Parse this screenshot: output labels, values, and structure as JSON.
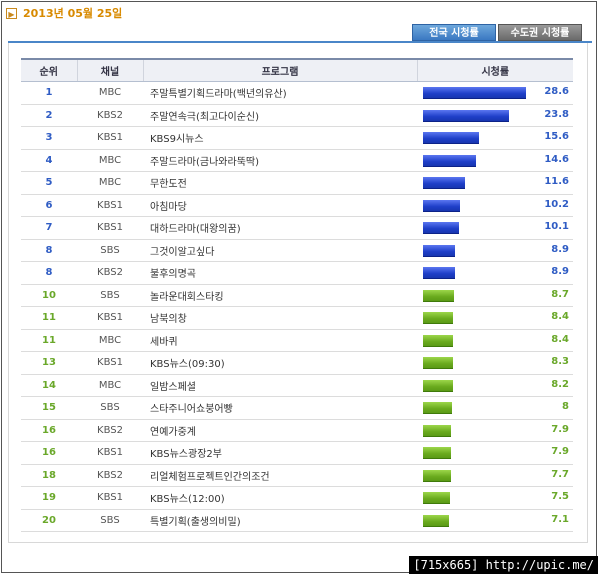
{
  "header": {
    "date": "2013년 05월 25일",
    "date_icon": "arrow-right-icon"
  },
  "tabs": [
    {
      "label": "전국 시청률",
      "active": true
    },
    {
      "label": "수도권 시청률",
      "active": false
    }
  ],
  "table": {
    "headers": [
      "순위",
      "채널",
      "프로그램",
      "시청률"
    ],
    "max_rating": 28.6,
    "rows": [
      {
        "rank": "1",
        "channel": "MBC",
        "program": "주말특별기획드라마(백년의유산)",
        "rating": "28.6",
        "value": 28.6,
        "tier": "blue"
      },
      {
        "rank": "2",
        "channel": "KBS2",
        "program": "주말연속극(최고다이순신)",
        "rating": "23.8",
        "value": 23.8,
        "tier": "blue"
      },
      {
        "rank": "3",
        "channel": "KBS1",
        "program": "KBS9시뉴스",
        "rating": "15.6",
        "value": 15.6,
        "tier": "blue"
      },
      {
        "rank": "4",
        "channel": "MBC",
        "program": "주말드라마(금나와라뚝딱)",
        "rating": "14.6",
        "value": 14.6,
        "tier": "blue"
      },
      {
        "rank": "5",
        "channel": "MBC",
        "program": "무한도전",
        "rating": "11.6",
        "value": 11.6,
        "tier": "blue"
      },
      {
        "rank": "6",
        "channel": "KBS1",
        "program": "아침마당",
        "rating": "10.2",
        "value": 10.2,
        "tier": "blue"
      },
      {
        "rank": "7",
        "channel": "KBS1",
        "program": "대하드라마(대왕의꿈)",
        "rating": "10.1",
        "value": 10.1,
        "tier": "blue"
      },
      {
        "rank": "8",
        "channel": "SBS",
        "program": "그것이알고싶다",
        "rating": "8.9",
        "value": 8.9,
        "tier": "blue"
      },
      {
        "rank": "8",
        "channel": "KBS2",
        "program": "불후의명곡",
        "rating": "8.9",
        "value": 8.9,
        "tier": "blue"
      },
      {
        "rank": "10",
        "channel": "SBS",
        "program": "놀라운대회스타킹",
        "rating": "8.7",
        "value": 8.7,
        "tier": "green"
      },
      {
        "rank": "11",
        "channel": "KBS1",
        "program": "남북의창",
        "rating": "8.4",
        "value": 8.4,
        "tier": "green"
      },
      {
        "rank": "11",
        "channel": "MBC",
        "program": "세바퀴",
        "rating": "8.4",
        "value": 8.4,
        "tier": "green"
      },
      {
        "rank": "13",
        "channel": "KBS1",
        "program": "KBS뉴스(09:30)",
        "rating": "8.3",
        "value": 8.3,
        "tier": "green"
      },
      {
        "rank": "14",
        "channel": "MBC",
        "program": "일밤스페셜",
        "rating": "8.2",
        "value": 8.2,
        "tier": "green"
      },
      {
        "rank": "15",
        "channel": "SBS",
        "program": "스타주니어쇼붕어빵",
        "rating": "8",
        "value": 8.0,
        "tier": "green"
      },
      {
        "rank": "16",
        "channel": "KBS2",
        "program": "연예가중계",
        "rating": "7.9",
        "value": 7.9,
        "tier": "green"
      },
      {
        "rank": "16",
        "channel": "KBS1",
        "program": "KBS뉴스광장2부",
        "rating": "7.9",
        "value": 7.9,
        "tier": "green"
      },
      {
        "rank": "18",
        "channel": "KBS2",
        "program": "리얼체험프로젝트인간의조건",
        "rating": "7.7",
        "value": 7.7,
        "tier": "green"
      },
      {
        "rank": "19",
        "channel": "KBS1",
        "program": "KBS뉴스(12:00)",
        "rating": "7.5",
        "value": 7.5,
        "tier": "green"
      },
      {
        "rank": "20",
        "channel": "SBS",
        "program": "특별기획(출생의비밀)",
        "rating": "7.1",
        "value": 7.1,
        "tier": "green"
      }
    ]
  },
  "watermark": "[715x665] http://upic.me/"
}
